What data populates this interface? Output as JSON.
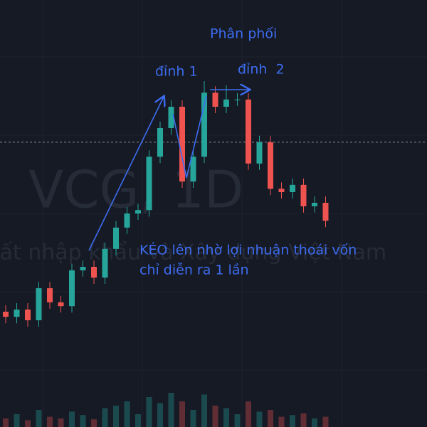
{
  "chart_data": {
    "type": "candlestick",
    "watermark": "VCG, 1D",
    "watermark_name": "Xuất nhập khẩu và Xây dựng Việt Nam",
    "annotations": [
      "Phân phối",
      "đỉnh 1",
      "đỉnh  2",
      "KÉO lên nhờ lợi nhuận thoái vốn",
      "chỉ diễn ra 1 lần"
    ],
    "up_color": "#26a69a",
    "down_color": "#ef5350",
    "ylim": [
      0,
      100
    ],
    "volume_lim": [
      0,
      100
    ],
    "price_line": 66.7,
    "open": [
      27,
      25.8,
      27.5,
      25,
      32.5,
      29.2,
      28.3,
      36.7,
      37.5,
      35,
      41.7,
      46.7,
      50,
      50.8,
      63.3,
      70,
      75,
      57.5,
      63.3,
      78.3,
      75,
      76.7,
      76.7,
      61.7,
      66.7,
      55.8,
      55,
      56.7,
      51.7,
      52.5
    ],
    "high": [
      28.5,
      29,
      29,
      34,
      34,
      30.7,
      38.2,
      39,
      39,
      43.2,
      48.2,
      51.5,
      52.3,
      64.8,
      71.5,
      76.5,
      76.5,
      64.8,
      81,
      79.8,
      80,
      78.2,
      78.2,
      68.2,
      68.2,
      57.3,
      58.2,
      58.2,
      54,
      54
    ],
    "low": [
      24.3,
      24.3,
      23.5,
      23.5,
      27.7,
      26.8,
      26.8,
      35.2,
      33.5,
      33.5,
      40.2,
      45.2,
      48.5,
      49.3,
      61.8,
      68.5,
      56,
      56,
      61.8,
      73.5,
      73.5,
      75.2,
      60.2,
      60.2,
      54.3,
      53.5,
      53.5,
      50.2,
      50.2,
      46.8
    ],
    "close": [
      25.8,
      27.5,
      25,
      32.5,
      29.2,
      28.3,
      36.7,
      37.5,
      35,
      41.7,
      46.7,
      50,
      50.8,
      63.3,
      70,
      75,
      57.5,
      63.3,
      78.3,
      75,
      76.7,
      76.7,
      61.7,
      66.7,
      55.8,
      55,
      56.7,
      51.7,
      52.5,
      48.3
    ],
    "volume": [
      10,
      15,
      8,
      20,
      12,
      10,
      18,
      14,
      9,
      22,
      25,
      30,
      15,
      35,
      28,
      40,
      30,
      20,
      38,
      25,
      22,
      15,
      30,
      18,
      20,
      12,
      14,
      16,
      10,
      12
    ]
  }
}
